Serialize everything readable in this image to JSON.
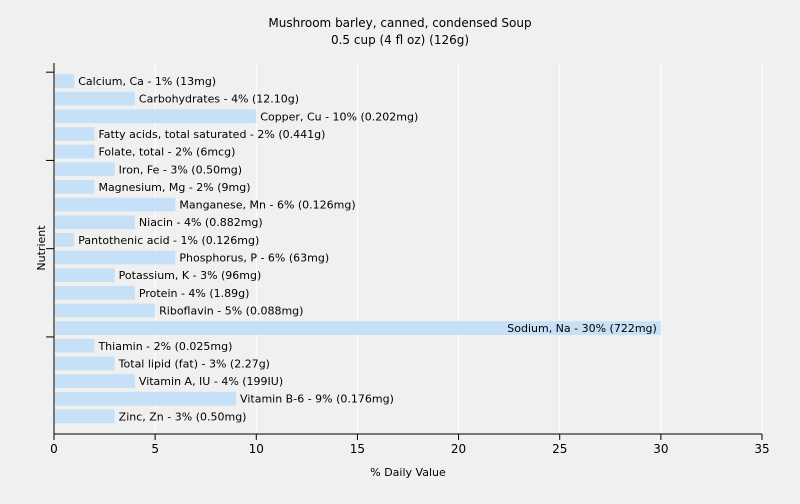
{
  "chart_data": {
    "type": "bar",
    "orientation": "horizontal",
    "title": "Mushroom barley, canned, condensed Soup",
    "subtitle": "0.5 cup (4 fl oz) (126g)",
    "xlabel": "% Daily Value",
    "ylabel": "Nutrient",
    "xlim": [
      0,
      35
    ],
    "xticks": [
      0,
      5,
      10,
      15,
      20,
      25,
      30,
      35
    ],
    "grid": true,
    "bar_color": "#c6e0f8",
    "categories": [
      "Calcium, Ca",
      "Carbohydrates",
      "Copper, Cu",
      "Fatty acids, total saturated",
      "Folate, total",
      "Iron, Fe",
      "Magnesium, Mg",
      "Manganese, Mn",
      "Niacin",
      "Pantothenic acid",
      "Phosphorus, P",
      "Potassium, K",
      "Protein",
      "Riboflavin",
      "Sodium, Na",
      "Thiamin",
      "Total lipid (fat)",
      "Vitamin A, IU",
      "Vitamin B-6",
      "Zinc, Zn"
    ],
    "values": [
      1,
      4,
      10,
      2,
      2,
      3,
      2,
      6,
      4,
      1,
      6,
      3,
      4,
      5,
      30,
      2,
      3,
      4,
      9,
      3
    ],
    "data_labels": [
      "Calcium, Ca - 1% (13mg)",
      "Carbohydrates - 4% (12.10g)",
      "Copper, Cu - 10% (0.202mg)",
      "Fatty acids, total saturated - 2% (0.441g)",
      "Folate, total - 2% (6mcg)",
      "Iron, Fe - 3% (0.50mg)",
      "Magnesium, Mg - 2% (9mg)",
      "Manganese, Mn - 6% (0.126mg)",
      "Niacin - 4% (0.882mg)",
      "Pantothenic acid - 1% (0.126mg)",
      "Phosphorus, P - 6% (63mg)",
      "Potassium, K - 3% (96mg)",
      "Protein - 4% (1.89g)",
      "Riboflavin - 5% (0.088mg)",
      "Sodium, Na - 30% (722mg)",
      "Thiamin - 2% (0.025mg)",
      "Total lipid (fat) - 3% (2.27g)",
      "Vitamin A, IU - 4% (199IU)",
      "Vitamin B-6 - 9% (0.176mg)",
      "Zinc, Zn - 3% (0.50mg)"
    ]
  }
}
